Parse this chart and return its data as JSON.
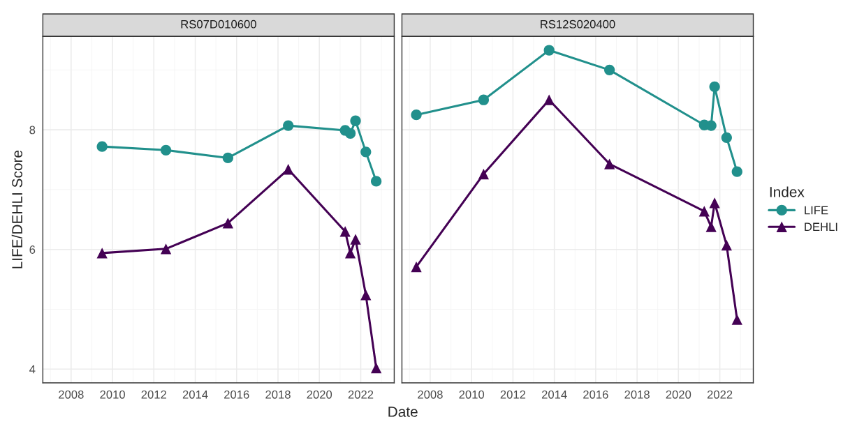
{
  "chart_data": [
    {
      "type": "line",
      "title": "RS07D010600",
      "xlabel": "Date",
      "ylabel": "LIFE/DEHLI Score",
      "legend": "right",
      "legend_title": "Index",
      "grid": true,
      "xlim": [
        "2006-08-20",
        "2023-08-15"
      ],
      "xticks": [
        "2008",
        "2010",
        "2012",
        "2014",
        "2016",
        "2018",
        "2020",
        "2022"
      ],
      "ylim": [
        3.77,
        9.56
      ],
      "yticks": [
        4,
        6,
        8
      ],
      "series": [
        {
          "name": "LIFE",
          "color": "#21908c",
          "marker": "circle",
          "x": [
            "2009-07",
            "2012-08",
            "2015-08",
            "2018-07",
            "2021-04",
            "2021-07",
            "2021-10",
            "2022-04",
            "2022-10"
          ],
          "values": [
            7.72,
            7.66,
            7.53,
            8.07,
            7.99,
            7.94,
            8.15,
            7.63,
            7.14
          ]
        },
        {
          "name": "DEHLI",
          "color": "#440154",
          "marker": "triangle",
          "x": [
            "2009-07",
            "2012-08",
            "2015-08",
            "2018-07",
            "2021-04",
            "2021-07",
            "2021-10",
            "2022-04",
            "2022-10"
          ],
          "values": [
            5.94,
            6.01,
            6.44,
            7.34,
            6.3,
            5.94,
            6.17,
            5.24,
            4.02
          ]
        }
      ]
    },
    {
      "type": "line",
      "title": "RS12S020400",
      "grid": true,
      "tick_labels": "x",
      "xlim": [
        "2006-08-20",
        "2023-08-15"
      ],
      "xticks": [
        "2008",
        "2010",
        "2012",
        "2014",
        "2016",
        "2018",
        "2020",
        "2022"
      ],
      "ylim": [
        3.77,
        9.56
      ],
      "yticks": [
        4,
        6,
        8
      ],
      "series": [
        {
          "color": "#21908c",
          "marker": "circle",
          "x": [
            "2007-05",
            "2010-08",
            "2013-10",
            "2016-09",
            "2021-04",
            "2021-08",
            "2021-10",
            "2022-05",
            "2022-11"
          ],
          "values": [
            8.25,
            8.5,
            9.33,
            9.0,
            8.08,
            8.07,
            8.72,
            7.87,
            7.3
          ]
        },
        {
          "color": "#440154",
          "marker": "triangle",
          "x": [
            "2007-05",
            "2010-08",
            "2013-10",
            "2016-09",
            "2021-04",
            "2021-08",
            "2021-10",
            "2022-05",
            "2022-11"
          ],
          "values": [
            5.71,
            7.26,
            8.5,
            7.43,
            6.64,
            6.38,
            6.78,
            6.07,
            4.83
          ]
        }
      ]
    }
  ]
}
